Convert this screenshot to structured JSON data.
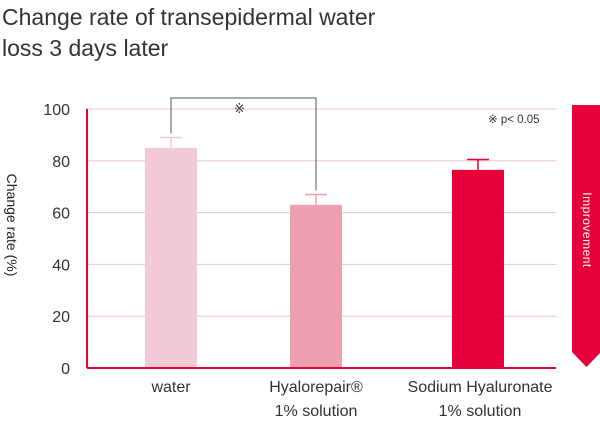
{
  "chart_data": {
    "type": "bar",
    "title_lines": [
      "Change rate of transepidermal water",
      "loss 3 days later"
    ],
    "ylabel": "Change rate (%)",
    "ylim": [
      0,
      100
    ],
    "yticks": [
      0,
      20,
      40,
      60,
      80,
      100
    ],
    "grid": true,
    "categories": [
      {
        "lines": [
          "water"
        ]
      },
      {
        "lines": [
          "Hyalorepair®",
          "1% solution"
        ]
      },
      {
        "lines": [
          "Sodium Hyaluronate",
          "1% solution"
        ]
      }
    ],
    "values": [
      85,
      63,
      76.5
    ],
    "error_tops": [
      89,
      67,
      80.5
    ],
    "colors": [
      "#f2cbd6",
      "#f09fb0",
      "#e60039"
    ],
    "significance": {
      "between": [
        0,
        1
      ],
      "mark": "※"
    },
    "note": "※ p< 0.05",
    "side_label": "Improvement",
    "side_color": "#e60039",
    "grid_color": "#f0c4cf",
    "axis_color": "#e60039"
  }
}
